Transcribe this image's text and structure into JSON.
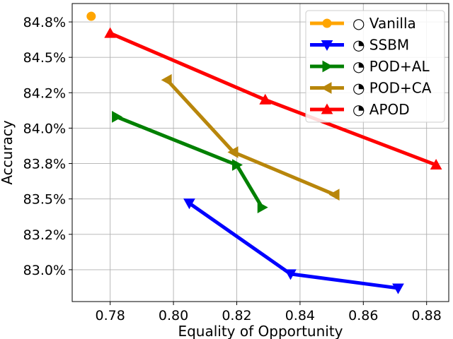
{
  "chart_data": {
    "type": "line",
    "title": "",
    "xlabel": "Equality of Opportunity",
    "ylabel": "Accuracy",
    "xlim": [
      0.768,
      0.887
    ],
    "ylim": [
      82.775,
      84.88
    ],
    "xticks": [
      0.78,
      0.8,
      0.82,
      0.84,
      0.86,
      0.88
    ],
    "xtick_labels": [
      "0.78",
      "0.80",
      "0.82",
      "0.84",
      "0.86",
      "0.88"
    ],
    "yticks": [
      83.0,
      83.25,
      83.5,
      83.75,
      84.0,
      84.25,
      84.5,
      84.75
    ],
    "ytick_labels": [
      "83.0%",
      "83.2%",
      "83.5%",
      "83.8%",
      "84.0%",
      "84.2%",
      "84.5%",
      "84.8%"
    ],
    "grid": true,
    "legend_position": "top-right",
    "series": [
      {
        "name": "○ Vanilla",
        "color": "#FFA500",
        "marker": "circle",
        "points": [
          [
            0.774,
            84.79
          ]
        ]
      },
      {
        "name": "◔ SSBM",
        "color": "#0000FF",
        "marker": "triangle-down",
        "points": [
          [
            0.805,
            83.47
          ],
          [
            0.837,
            82.97
          ],
          [
            0.871,
            82.87
          ]
        ]
      },
      {
        "name": "◔ POD+AL",
        "color": "#008000",
        "marker": "triangle-right",
        "points": [
          [
            0.782,
            84.08
          ],
          [
            0.82,
            83.74
          ],
          [
            0.828,
            83.44
          ]
        ]
      },
      {
        "name": "◔ POD+CA",
        "color": "#B8860B",
        "marker": "triangle-left",
        "points": [
          [
            0.798,
            84.34
          ],
          [
            0.819,
            83.83
          ],
          [
            0.851,
            83.53
          ]
        ]
      },
      {
        "name": "◔ APOD",
        "color": "#FF0000",
        "marker": "triangle-up",
        "points": [
          [
            0.78,
            84.67
          ],
          [
            0.829,
            84.2
          ],
          [
            0.883,
            83.74
          ]
        ]
      }
    ]
  }
}
